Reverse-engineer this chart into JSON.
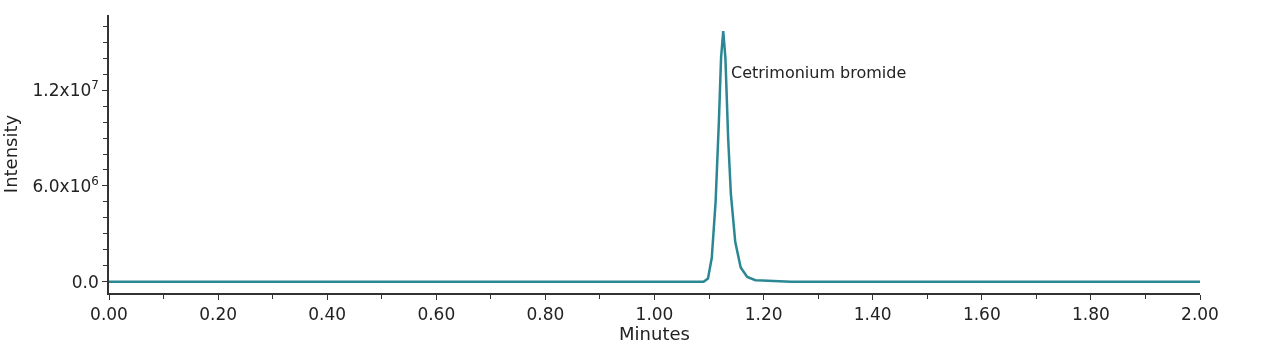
{
  "chart_data": {
    "type": "line",
    "xlabel": "Minutes",
    "ylabel": "Intensity",
    "x": [
      0,
      0.5,
      1.0,
      1.09,
      1.098,
      1.105,
      1.112,
      1.118,
      1.122,
      1.126,
      1.13,
      1.135,
      1.14,
      1.148,
      1.158,
      1.17,
      1.185,
      1.25,
      1.5,
      2.0
    ],
    "series": [
      {
        "color": "#2a8793",
        "values": [
          0,
          0,
          0,
          0,
          200000,
          1500000,
          5000000,
          10000000,
          14000000,
          15700000,
          14000000,
          9000000,
          5500000,
          2500000,
          900000,
          300000,
          100000,
          0,
          0,
          0
        ]
      }
    ],
    "xlim": [
      0,
      2
    ],
    "xticks": [
      {
        "value": 0,
        "label": "0.00"
      },
      {
        "value": 0.2,
        "label": "0.20"
      },
      {
        "value": 0.4,
        "label": "0.40"
      },
      {
        "value": 0.6,
        "label": "0.60"
      },
      {
        "value": 0.8,
        "label": "0.80"
      },
      {
        "value": 1.0,
        "label": "1.00"
      },
      {
        "value": 1.2,
        "label": "1.20"
      },
      {
        "value": 1.4,
        "label": "1.40"
      },
      {
        "value": 1.6,
        "label": "1.60"
      },
      {
        "value": 1.8,
        "label": "1.80"
      },
      {
        "value": 2.0,
        "label": "2.00"
      }
    ],
    "ylim": [
      -700000,
      16700000
    ],
    "yticks": [
      {
        "value": 0,
        "label": "0.0"
      },
      {
        "value": 6000000,
        "label": "6.0x10$^{6}$"
      },
      {
        "value": 12000000,
        "label": "1.2x10$^{7}$"
      }
    ],
    "annotations": [
      {
        "text": "Cetrimonium bromide",
        "x": 1.126,
        "y": 15700000
      }
    ],
    "marker": "none",
    "line_style": "solid"
  }
}
